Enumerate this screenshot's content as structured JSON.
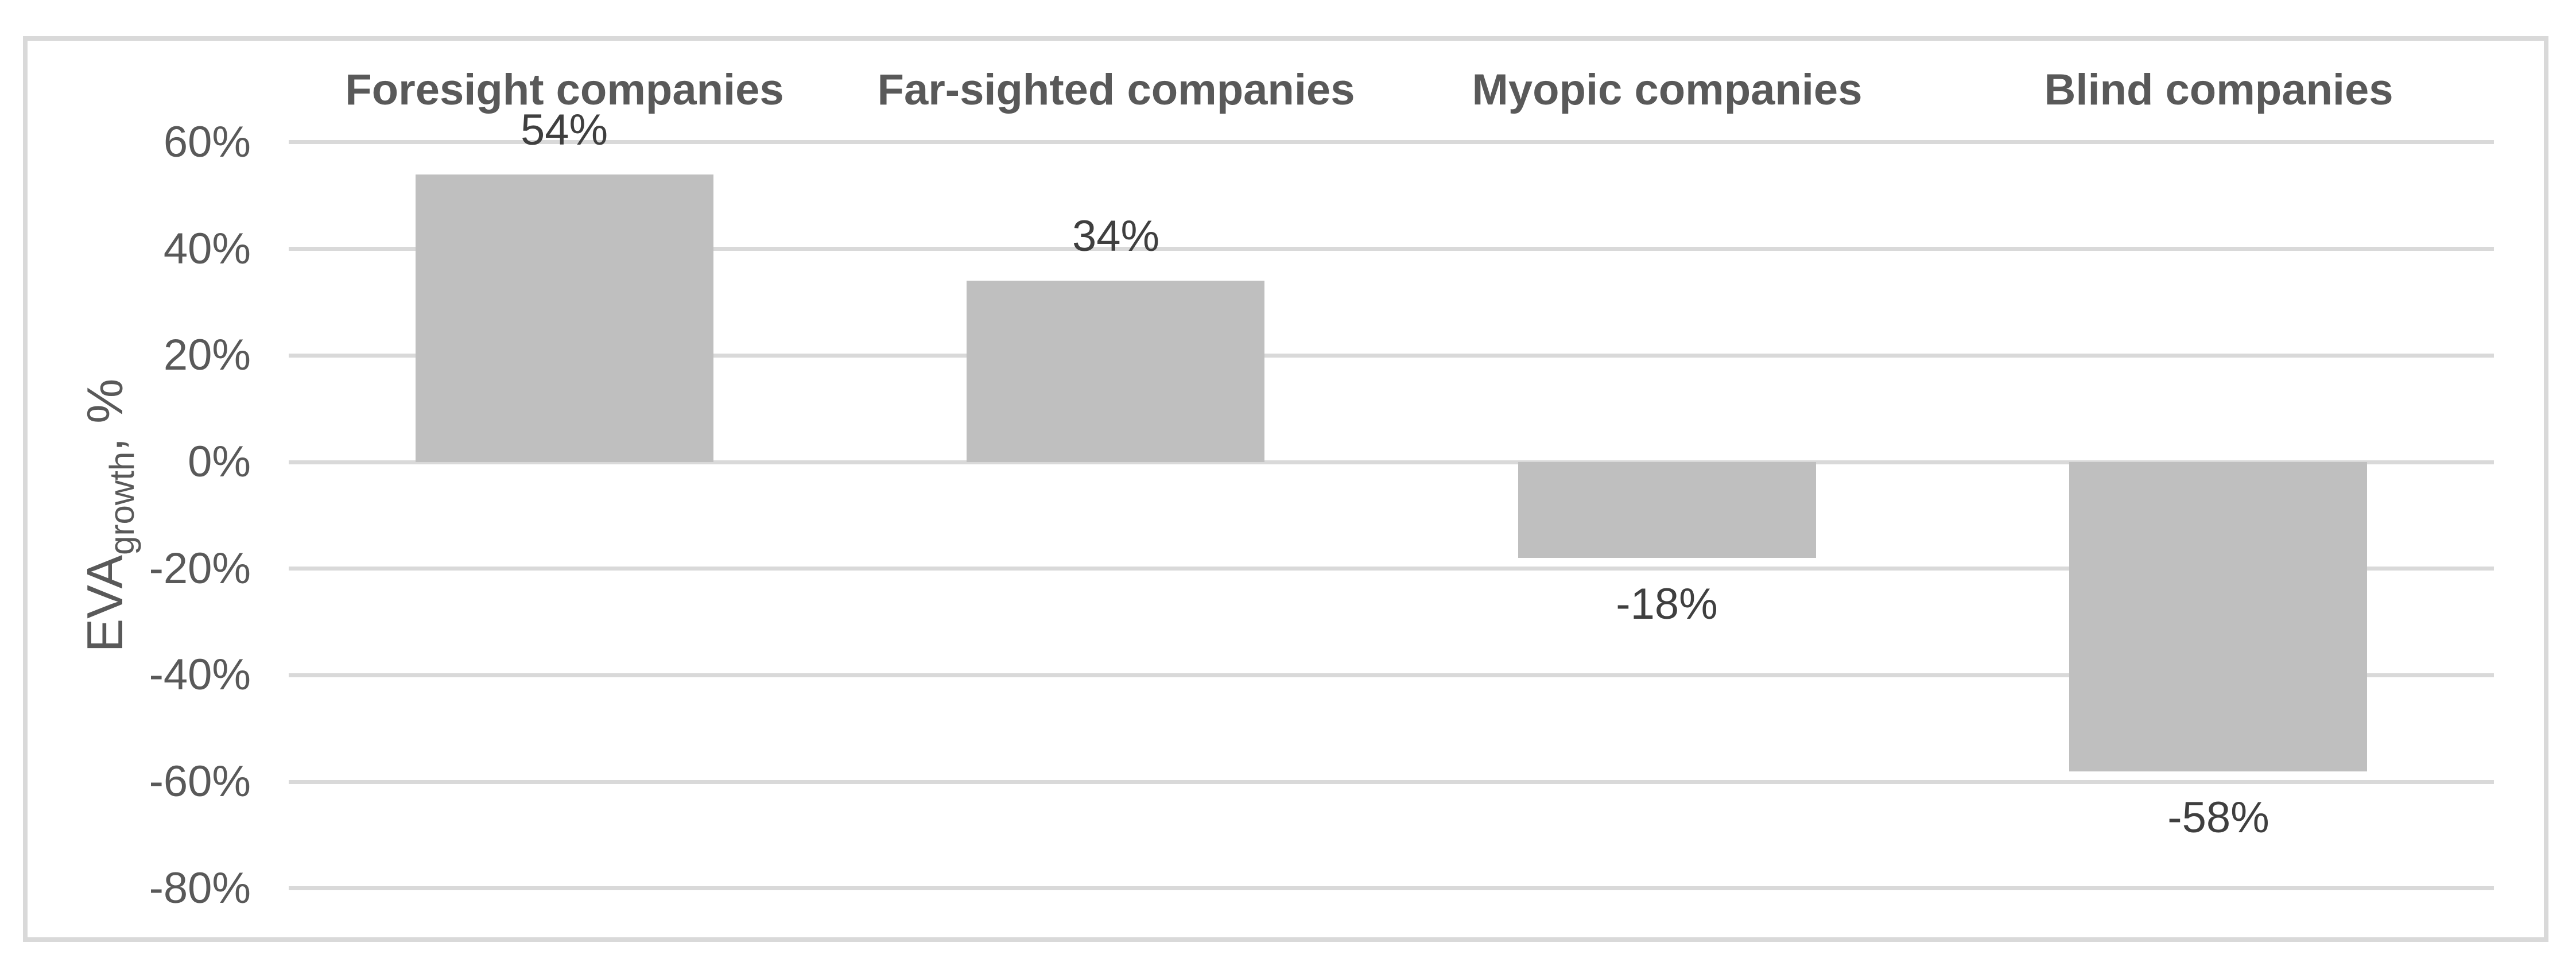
{
  "chart_data": {
    "type": "bar",
    "title": "",
    "categories": [
      "Foresight companies",
      "Far-sighted companies",
      "Myopic companies",
      "Blind companies"
    ],
    "values": [
      54,
      34,
      -18,
      -58
    ],
    "data_labels": [
      "54%",
      "34%",
      "-18%",
      "-58%"
    ],
    "ylabel": {
      "main": "EVA",
      "sub": "growth",
      "suffix": ", %"
    },
    "yticks": [
      {
        "value": 60,
        "label": "60%"
      },
      {
        "value": 40,
        "label": "40%"
      },
      {
        "value": 20,
        "label": "20%"
      },
      {
        "value": 0,
        "label": "0%"
      },
      {
        "value": -20,
        "label": "-20%"
      },
      {
        "value": -40,
        "label": "-40%"
      },
      {
        "value": -60,
        "label": "-60%"
      },
      {
        "value": -80,
        "label": "-80%"
      }
    ],
    "ylim": [
      -80,
      60
    ],
    "grid": true,
    "legend": "none",
    "bar_gap_ratio": 0.54,
    "colors": {
      "bar": "#bfbfbf",
      "gridline": "#d9d9d9",
      "frame_border": "#d9d9d9",
      "axis_text": "#595959",
      "category_text": "#595959",
      "data_label_text": "#3f3f3f",
      "background": "#ffffff"
    }
  }
}
